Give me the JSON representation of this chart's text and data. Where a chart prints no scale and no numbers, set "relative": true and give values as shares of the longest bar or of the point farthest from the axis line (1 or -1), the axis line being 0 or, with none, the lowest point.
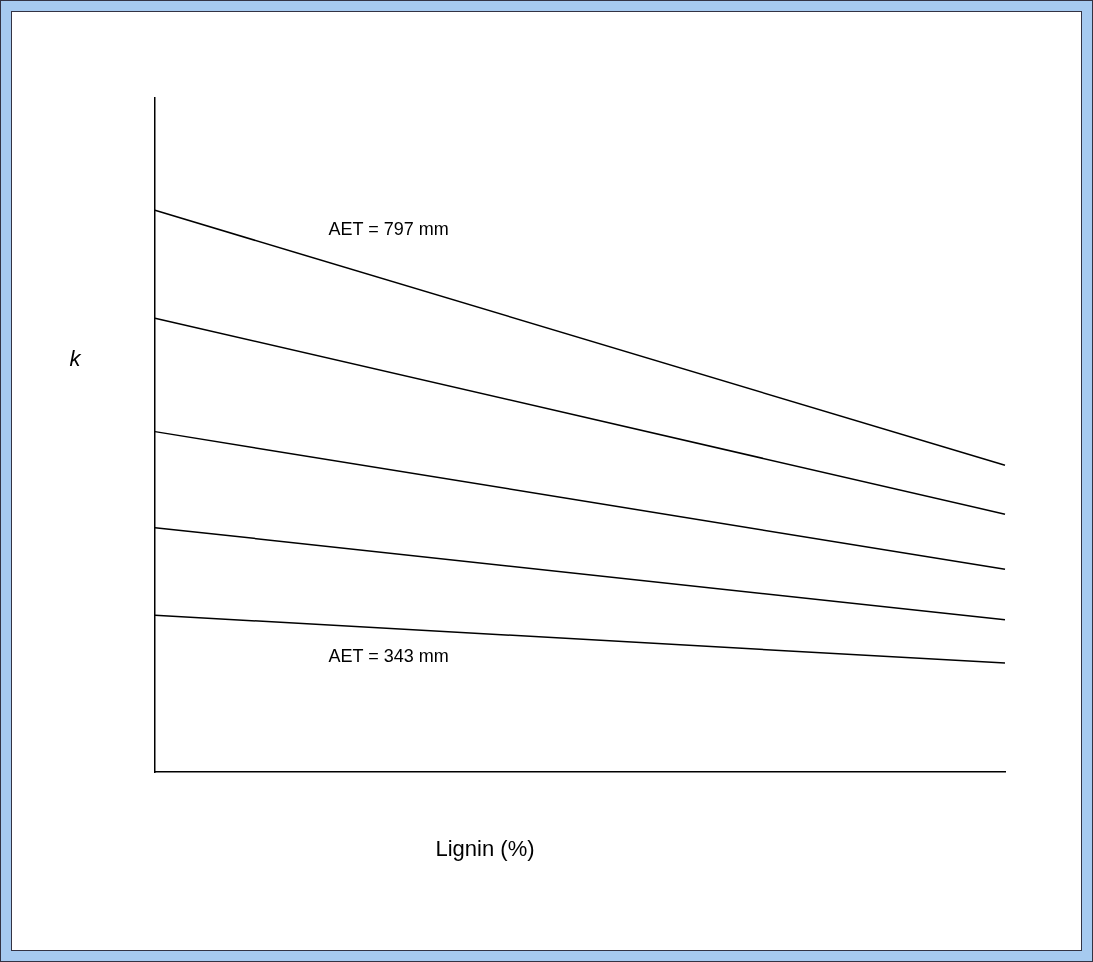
{
  "chart_data": {
    "type": "line",
    "relative": true,
    "xlabel": "Lignin (%)",
    "ylabel": "k",
    "categories": [
      null,
      null
    ],
    "series": [
      {
        "name": "AET = 797 mm",
        "color": "#000000",
        "values": [
          1,
          0.546
        ]
      },
      {
        "color": "#000000",
        "values": [
          0.808,
          0.459
        ]
      },
      {
        "color": "#000000",
        "values": [
          0.606,
          0.361
        ]
      },
      {
        "color": "#000000",
        "values": [
          0.435,
          0.271
        ]
      },
      {
        "name": "AET = 343 mm",
        "color": "#000000",
        "values": [
          0.279,
          0.194
        ]
      }
    ],
    "marker": "none",
    "line_style": "solid",
    "grid": false,
    "legend": false,
    "tick_labels": false
  }
}
